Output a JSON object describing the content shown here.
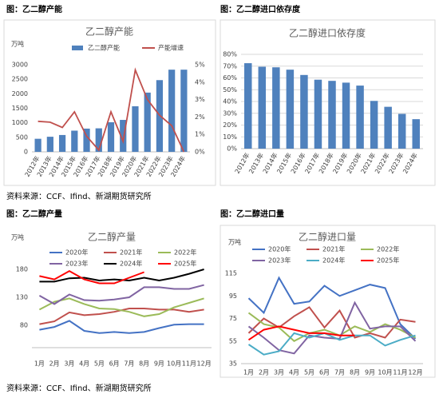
{
  "captions": [
    "图：乙二醇产能",
    "图：乙二醇进口依存度",
    "图：乙二醇产量",
    "图：乙二醇进口量"
  ],
  "sources": [
    "资料来源：CCF、Ifind、新湖期货研究所",
    "资料来源：CCF、Ifind、新湖期货研究所"
  ],
  "chart_data": [
    {
      "type": "combo",
      "title": "乙二醇产能",
      "y_label": "万吨",
      "categories": [
        "2012年",
        "2013年",
        "2014年",
        "2015年",
        "2016年",
        "2017年",
        "2018年",
        "2019年",
        "2020年",
        "2021年",
        "2022年",
        "2023年",
        "2024年"
      ],
      "series": [
        {
          "name": "乙二醇产能",
          "type": "bar",
          "color": "#4f81bd",
          "values": [
            450,
            520,
            580,
            730,
            800,
            810,
            1020,
            1100,
            1570,
            2040,
            2470,
            2830,
            2830
          ]
        },
        {
          "name": "产能增速",
          "type": "line",
          "axis": "y2",
          "color": "#c0504d",
          "values": [
            1.75,
            1.7,
            1.4,
            2.3,
            0.9,
            0.1,
            2.3,
            0.6,
            4.7,
            3.0,
            2.1,
            1.5,
            0
          ]
        }
      ],
      "ylim": [
        0,
        3000
      ],
      "yticks": [
        0,
        500,
        1000,
        1500,
        2000,
        2500,
        3000
      ],
      "y2lim": [
        0,
        5
      ],
      "y2ticks": [
        {
          "value": 0,
          "label": "0%"
        },
        {
          "value": 1,
          "label": "1%"
        },
        {
          "value": 2,
          "label": "2%"
        },
        {
          "value": 3,
          "label": "3%"
        },
        {
          "value": 4,
          "label": "4%"
        },
        {
          "value": 5,
          "label": "5%"
        }
      ]
    },
    {
      "type": "bar",
      "title": "乙二醇进口依存度",
      "color": "#4f81bd",
      "categories": [
        "2012年",
        "2013年",
        "2014年",
        "2015年",
        "2016年",
        "2017年",
        "2018年",
        "2019年",
        "2020年",
        "2021年",
        "2022年",
        "2023年",
        "2024年"
      ],
      "values": [
        72.5,
        69.5,
        69,
        67,
        62.5,
        58.5,
        57.5,
        56,
        53.5,
        40.5,
        35.5,
        29.5,
        25
      ],
      "ylim": [
        0,
        80
      ],
      "grid": true,
      "yticks": [
        {
          "value": 0,
          "label": "0%"
        },
        {
          "value": 10,
          "label": "10%"
        },
        {
          "value": 20,
          "label": "20%"
        },
        {
          "value": 30,
          "label": "30%"
        },
        {
          "value": 40,
          "label": "40%"
        },
        {
          "value": 50,
          "label": "50%"
        },
        {
          "value": 60,
          "label": "60%"
        },
        {
          "value": 70,
          "label": "70%"
        },
        {
          "value": 80,
          "label": "80%"
        }
      ]
    },
    {
      "type": "line",
      "title": "乙二醇产量",
      "y_label": "万吨",
      "categories": [
        "1月",
        "2月",
        "3月",
        "4月",
        "5月",
        "6月",
        "7月",
        "8月",
        "9月",
        "10月",
        "11月",
        "12月"
      ],
      "series": [
        {
          "name": "2020年",
          "color": "#4472c4",
          "values": [
            72,
            77,
            88,
            70,
            66,
            68,
            66,
            68,
            75,
            81,
            82,
            82
          ]
        },
        {
          "name": "2021年",
          "color": "#c0504d",
          "values": [
            82,
            87,
            103,
            98,
            100,
            104,
            110,
            110,
            108,
            108,
            104,
            108
          ]
        },
        {
          "name": "2022年",
          "color": "#9bbb59",
          "values": [
            108,
            122,
            128,
            118,
            110,
            109,
            104,
            96,
            100,
            112,
            120,
            128
          ]
        },
        {
          "name": "2023年",
          "color": "#8064a2",
          "values": [
            133,
            118,
            135,
            125,
            124,
            126,
            130,
            148,
            148,
            145,
            145,
            152
          ]
        },
        {
          "name": "2024年",
          "color": "#000000",
          "values": [
            158,
            158,
            164,
            165,
            160,
            162,
            160,
            165,
            160,
            165,
            172,
            180
          ]
        },
        {
          "name": "2025年",
          "color": "#ff0000",
          "values": [
            168,
            162,
            177,
            162,
            155,
            155,
            165,
            175,
            null,
            null,
            null,
            null
          ]
        }
      ],
      "ylim": [
        40,
        200
      ],
      "yticks": [
        80,
        130,
        180
      ]
    },
    {
      "type": "line",
      "title": "乙二醇进口量",
      "y_label": "万吨",
      "categories": [
        "1月",
        "2月",
        "3月",
        "4月",
        "5月",
        "6月",
        "7月",
        "8月",
        "9月",
        "10月",
        "11月",
        "12月"
      ],
      "series": [
        {
          "name": "2020年",
          "color": "#4472c4",
          "values": [
            93,
            80,
            111,
            88,
            90,
            104,
            95,
            100,
            105,
            102,
            70,
            57
          ]
        },
        {
          "name": "2021年",
          "color": "#c0504d",
          "values": [
            62,
            75,
            67,
            77,
            85,
            67,
            82,
            58,
            62,
            58,
            74,
            72
          ]
        },
        {
          "name": "2022年",
          "color": "#9bbb59",
          "values": [
            80,
            70,
            67,
            55,
            62,
            65,
            60,
            68,
            63,
            70,
            65,
            58
          ]
        },
        {
          "name": "2023年",
          "color": "#8064a2",
          "values": [
            68,
            58,
            47,
            44,
            60,
            58,
            57,
            89,
            66,
            68,
            68,
            55
          ]
        },
        {
          "name": "2024年",
          "color": "#4bacc6",
          "values": [
            52,
            43,
            46,
            62,
            58,
            62,
            56,
            60,
            60,
            51,
            56,
            60
          ]
        },
        {
          "name": "2025年",
          "color": "#ff0000",
          "values": [
            56,
            65,
            68,
            65,
            62,
            62,
            60,
            60,
            null,
            null,
            null,
            null
          ]
        }
      ],
      "ylim": [
        35,
        115
      ],
      "yticks": [
        35,
        55,
        75,
        95,
        115
      ]
    }
  ]
}
